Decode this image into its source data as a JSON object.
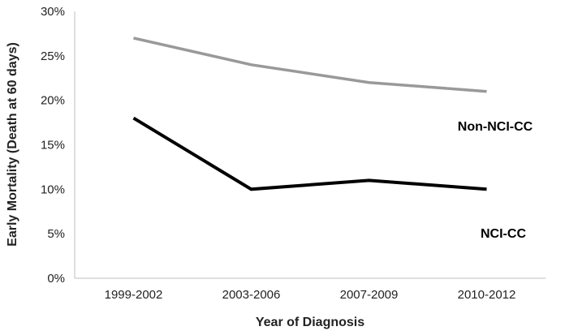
{
  "chart_data": {
    "type": "line",
    "title": "",
    "xlabel": "Year of Diagnosis",
    "ylabel": "Early Mortality (Death at 60 days)",
    "categories": [
      "1999-2002",
      "2003-2006",
      "2007-2009",
      "2010-2012"
    ],
    "ylim": [
      0,
      30
    ],
    "yticks": [
      "0%",
      "5%",
      "10%",
      "15%",
      "20%",
      "25%",
      "30%"
    ],
    "ytick_values": [
      0,
      5,
      10,
      15,
      20,
      25,
      30
    ],
    "grid": false,
    "legend": "none",
    "series": [
      {
        "name": "Non-NCI-CC",
        "values": [
          27,
          24,
          22,
          21
        ],
        "color": "#999999"
      },
      {
        "name": "NCI-CC",
        "values": [
          18,
          10,
          11,
          10
        ],
        "color": "#000000"
      }
    ]
  }
}
